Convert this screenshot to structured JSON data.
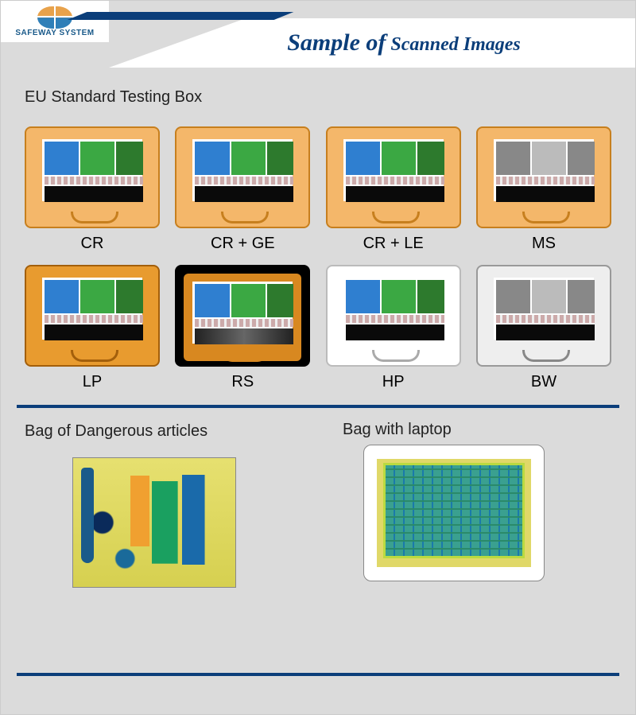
{
  "logo": {
    "brand": "SAFEWAY SYSTEM"
  },
  "header": {
    "title_main": "Sample of",
    "title_sub": " Scanned Images"
  },
  "section1": {
    "title": "EU Standard Testing Box"
  },
  "boxes": {
    "row1": [
      {
        "label": "CR",
        "case": "case-orange",
        "scheme": "color"
      },
      {
        "label": "CR + GE",
        "case": "case-orange",
        "scheme": "color"
      },
      {
        "label": "CR + LE",
        "case": "case-orange",
        "scheme": "color"
      },
      {
        "label": "MS",
        "case": "case-orange",
        "scheme": "grey"
      }
    ],
    "row2": [
      {
        "label": "LP",
        "case": "case-orange2",
        "scheme": "color"
      },
      {
        "label": "RS",
        "case": "case-black",
        "scheme": "dark"
      },
      {
        "label": "HP",
        "case": "case-white",
        "scheme": "color"
      },
      {
        "label": "BW",
        "case": "case-grey",
        "scheme": "grey"
      }
    ]
  },
  "section2": {
    "bag1_title": "Bag of Dangerous articles",
    "bag2_title": "Bag with laptop"
  },
  "colors": {
    "brand_navy": "#0b3e7a",
    "page_bg": "#dbdbdb",
    "case_orange": "#f4b76a",
    "case_orange_dark": "#e89b2f",
    "scan_blue": "#2f7fd0",
    "scan_green": "#3ba843",
    "scan_yellow": "#e6e070"
  }
}
